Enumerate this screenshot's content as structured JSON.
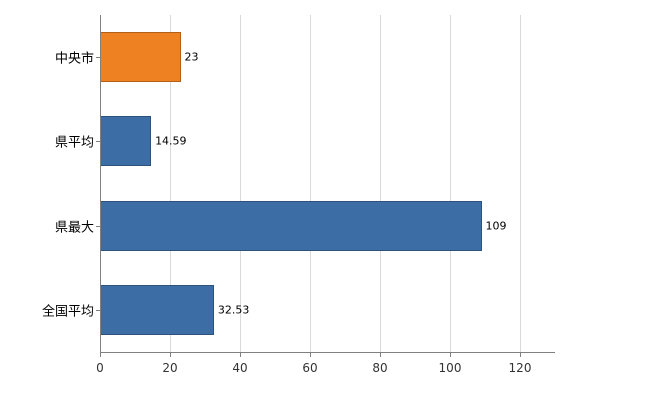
{
  "chart_data": {
    "type": "bar",
    "orientation": "horizontal",
    "title": "",
    "categories": [
      "中央市",
      "県平均",
      "県最大",
      "全国平均"
    ],
    "values": [
      23,
      14.59,
      109,
      32.53
    ],
    "value_labels": [
      "23",
      "14.59",
      "109",
      "32.53"
    ],
    "bar_colors": [
      "#ee8122",
      "#3c6ea5",
      "#3c6ea5",
      "#3c6ea5"
    ],
    "xlim": [
      0,
      130
    ],
    "x_ticks": [
      0,
      20,
      40,
      60,
      80,
      100,
      120
    ],
    "grid": true,
    "gridline_color": "#d9d9d9",
    "axis_color": "#808080",
    "legend": "none"
  }
}
